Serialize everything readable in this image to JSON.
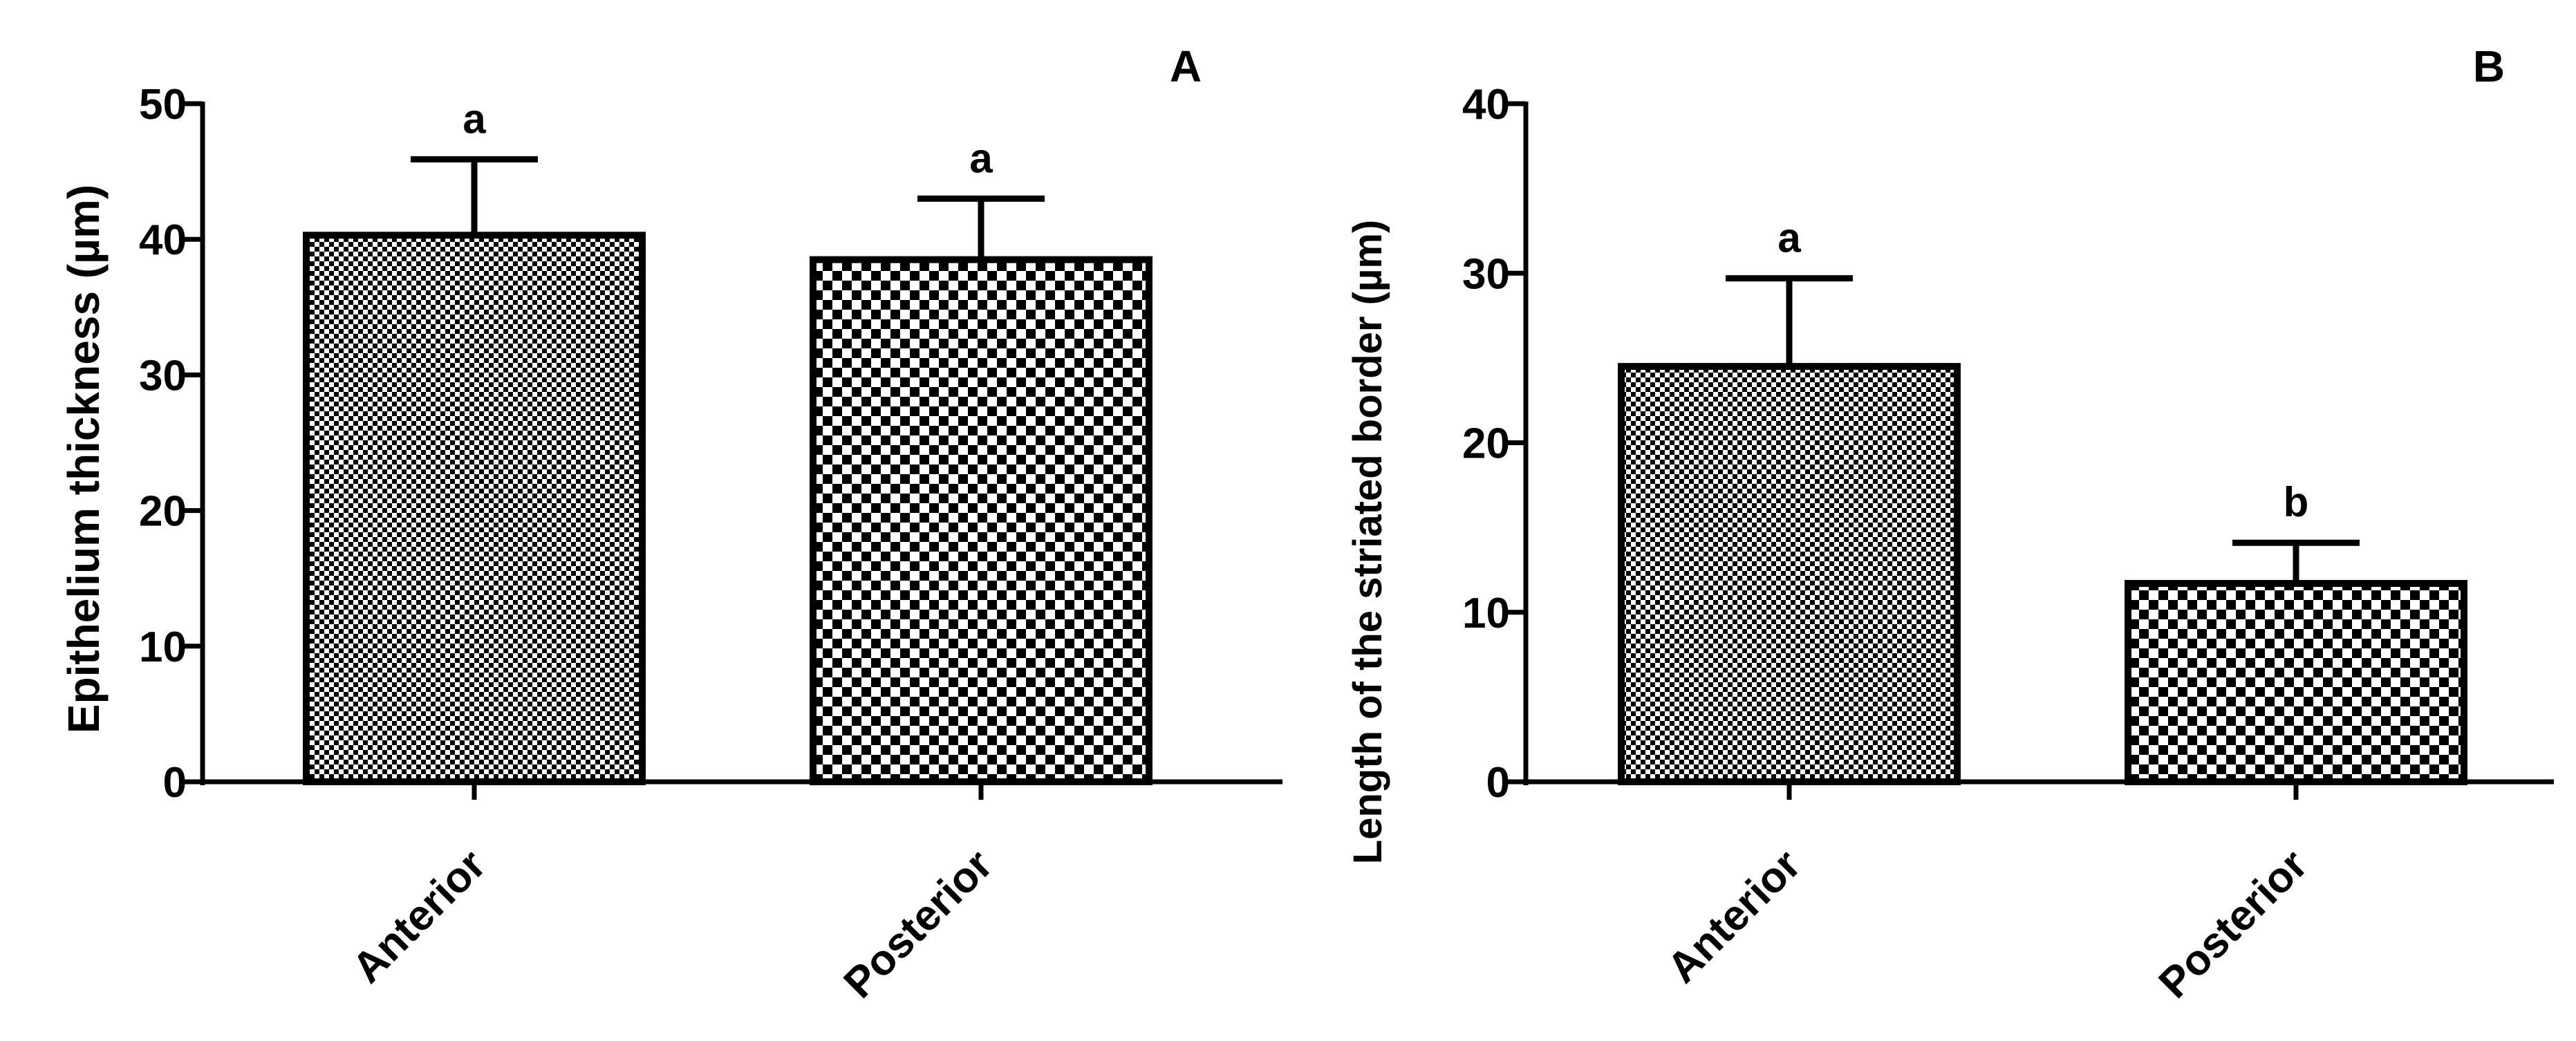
{
  "colors": {
    "ink": "#000000",
    "background": "#ffffff"
  },
  "chart_data": [
    {
      "type": "bar",
      "panel_label": "A",
      "title": "",
      "xlabel": "",
      "ylabel": "Epithelium thickness (µm)",
      "categories": [
        "Anterior",
        "Posterior"
      ],
      "values": [
        40.3,
        38.5
      ],
      "errors": [
        5.6,
        4.5
      ],
      "significance_letters": [
        "a",
        "a"
      ],
      "patterns": [
        "fine-checker",
        "coarse-checker"
      ],
      "ylim": [
        0,
        50
      ],
      "yticks": [
        0,
        10,
        20,
        30,
        40,
        50
      ],
      "ytick_labels": [
        "0",
        "10",
        "20",
        "30",
        "40",
        "50"
      ],
      "grid": false,
      "legend": "none"
    },
    {
      "type": "bar",
      "panel_label": "B",
      "title": "",
      "xlabel": "",
      "ylabel": "Length of the striated border (µm)",
      "categories": [
        "Anterior",
        "Posterior"
      ],
      "values": [
        24.5,
        11.7
      ],
      "errors": [
        5.2,
        2.4
      ],
      "significance_letters": [
        "a",
        "b"
      ],
      "patterns": [
        "fine-checker",
        "coarse-checker"
      ],
      "ylim": [
        0,
        40
      ],
      "yticks": [
        0,
        10,
        20,
        30,
        40
      ],
      "ytick_labels": [
        "0",
        "10",
        "20",
        "30",
        "40"
      ],
      "grid": false,
      "legend": "none"
    }
  ]
}
